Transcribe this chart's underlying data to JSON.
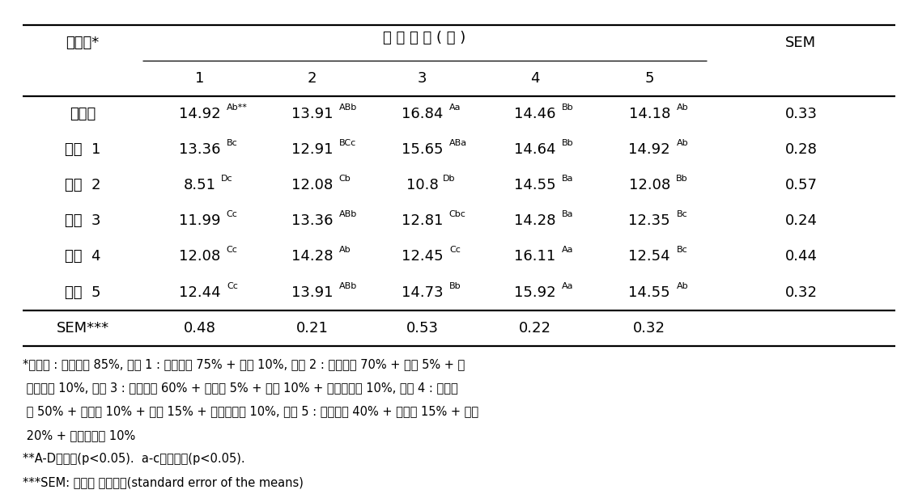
{
  "col_header_main": "처리구*",
  "col_header_title": "저 장 기 간 ( 주 )",
  "col_header_weeks": [
    "1",
    "2",
    "3",
    "4",
    "5"
  ],
  "col_header_sem": "SEM",
  "rows": [
    {
      "label": "대조구",
      "v1": "14.92",
      "s1": "Ab**",
      "v2": "13.91",
      "s2": "ABb",
      "v3": "16.84",
      "s3": "Aa",
      "v4": "14.46",
      "s4": "Bb",
      "v5": "14.18",
      "s5": "Ab",
      "sem": "0.33"
    },
    {
      "label": "처리  1",
      "v1": "13.36",
      "s1": "Bc",
      "v2": "12.91",
      "s2": "BCc",
      "v3": "15.65",
      "s3": "ABa",
      "v4": "14.64",
      "s4": "Bb",
      "v5": "14.92",
      "s5": "Ab",
      "sem": "0.28"
    },
    {
      "label": "처리  2",
      "v1": "8.51",
      "s1": "Dc",
      "v2": "12.08",
      "s2": "Cb",
      "v3": "10.8",
      "s3": "Db",
      "v4": "14.55",
      "s4": "Ba",
      "v5": "12.08",
      "s5": "Bb",
      "sem": "0.57"
    },
    {
      "label": "처리  3",
      "v1": "11.99",
      "s1": "Cc",
      "v2": "13.36",
      "s2": "ABb",
      "v3": "12.81",
      "s3": "Cbc",
      "v4": "14.28",
      "s4": "Ba",
      "v5": "12.35",
      "s5": "Bc",
      "sem": "0.24"
    },
    {
      "label": "처리  4",
      "v1": "12.08",
      "s1": "Cc",
      "v2": "14.28",
      "s2": "Ab",
      "v3": "12.45",
      "s3": "Cc",
      "v4": "16.11",
      "s4": "Aa",
      "v5": "12.54",
      "s5": "Bc",
      "sem": "0.44"
    },
    {
      "label": "처리  5",
      "v1": "12.44",
      "s1": "Cc",
      "v2": "13.91",
      "s2": "ABb",
      "v3": "14.73",
      "s3": "Bb",
      "v4": "15.92",
      "s4": "Aa",
      "v5": "14.55",
      "s5": "Ab",
      "sem": "0.32"
    }
  ],
  "sem_row_label": "SEM***",
  "sem_row_values": [
    "0.48",
    "0.21",
    "0.53",
    "0.22",
    "0.32"
  ],
  "footnote_lines": [
    "*대조구 : 돼지고기 85%, 처리 1 : 돼지고기 75% + 전분 10%, 처리 2 : 돼지고기 70% + 어육 5% + 옥",
    " 수수전분 10%, 처리 3 : 돼지고기 60% + 닭고기 5% + 어육 10% + 옥수수전분 10%, 처리 4 : 돼지고",
    " 기 50% + 닭고기 10% + 어육 15% + 옥수수전분 10%, 처리 5 : 돼지고기 40% + 닭고기 15% + 어육",
    " 20% + 옥수수전분 10%",
    "**A-D처리구(p<0.05).  a-c저장기간(p<0.05).",
    "***SEM: 평균의 표준오차(standard error of the means)"
  ],
  "bg_color": "#ffffff",
  "text_color": "#000000",
  "font_size": 13,
  "footnote_font_size": 10.5,
  "superscript_font_size": 8
}
